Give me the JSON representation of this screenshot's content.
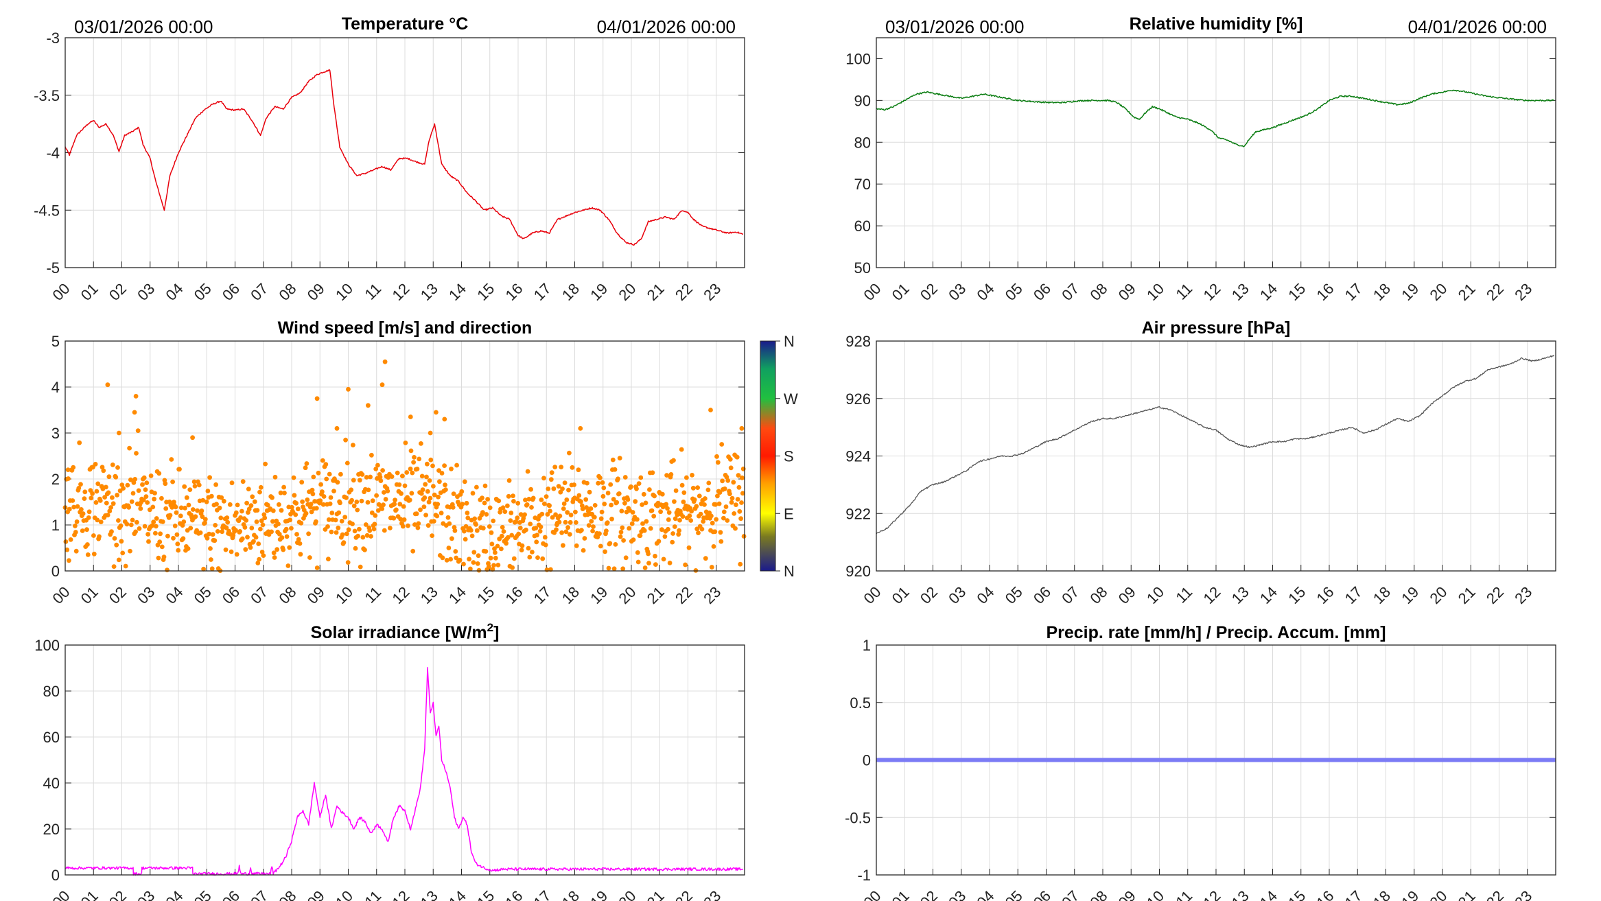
{
  "dates": {
    "start": "03/01/2026 00:00",
    "end": "04/01/2026 00:00"
  },
  "hour_labels": [
    "00",
    "01",
    "02",
    "03",
    "04",
    "05",
    "06",
    "07",
    "08",
    "09",
    "10",
    "11",
    "12",
    "13",
    "14",
    "15",
    "16",
    "17",
    "18",
    "19",
    "20",
    "21",
    "22",
    "23"
  ],
  "colors": {
    "temperature": "#e8000b",
    "humidity": "#0b7d12",
    "wind": "#ff8a00",
    "pressure": "#555555",
    "solar": "#ff00ff",
    "precip": "#7b7bf5"
  },
  "chart_data": [
    {
      "id": "temperature",
      "type": "line",
      "title": "Temperature °C",
      "xlabel": "",
      "ylabel": "",
      "xlim": [
        0,
        24
      ],
      "ylim": [
        -5,
        -3
      ],
      "yticks": [
        -5,
        -4.5,
        -4,
        -3.5,
        -3
      ],
      "ytick_labels": [
        "-5",
        "-4.5",
        "-4",
        "-3.5",
        "-3"
      ],
      "x": [
        0,
        0.15,
        0.4,
        0.6,
        0.8,
        1.0,
        1.2,
        1.45,
        1.7,
        1.9,
        2.1,
        2.35,
        2.6,
        2.75,
        3.0,
        3.2,
        3.5,
        3.7,
        4.0,
        4.3,
        4.6,
        4.9,
        5.2,
        5.5,
        5.7,
        6.0,
        6.3,
        6.6,
        6.9,
        7.1,
        7.4,
        7.7,
        8.0,
        8.3,
        8.6,
        8.9,
        9.1,
        9.35,
        9.5,
        9.7,
        10.0,
        10.3,
        10.6,
        10.9,
        11.2,
        11.5,
        11.8,
        12.1,
        12.4,
        12.7,
        12.85,
        13.05,
        13.3,
        13.6,
        13.9,
        14.2,
        14.5,
        14.8,
        15.1,
        15.4,
        15.7,
        16.0,
        16.2,
        16.5,
        16.8,
        17.1,
        17.4,
        17.7,
        18.0,
        18.3,
        18.6,
        18.9,
        19.2,
        19.5,
        19.8,
        20.1,
        20.35,
        20.6,
        20.9,
        21.2,
        21.5,
        21.8,
        22.0,
        22.2,
        22.5,
        22.8,
        23.1,
        23.4,
        23.7,
        23.95
      ],
      "y": [
        -3.95,
        -4.02,
        -3.85,
        -3.8,
        -3.75,
        -3.72,
        -3.78,
        -3.75,
        -3.85,
        -3.99,
        -3.85,
        -3.82,
        -3.78,
        -3.93,
        -4.05,
        -4.25,
        -4.5,
        -4.2,
        -4.0,
        -3.85,
        -3.7,
        -3.63,
        -3.58,
        -3.55,
        -3.62,
        -3.63,
        -3.62,
        -3.72,
        -3.85,
        -3.7,
        -3.6,
        -3.62,
        -3.52,
        -3.48,
        -3.38,
        -3.32,
        -3.3,
        -3.28,
        -3.6,
        -3.95,
        -4.1,
        -4.2,
        -4.18,
        -4.15,
        -4.12,
        -4.15,
        -4.05,
        -4.05,
        -4.08,
        -4.1,
        -3.9,
        -3.75,
        -4.1,
        -4.2,
        -4.25,
        -4.35,
        -4.42,
        -4.5,
        -4.48,
        -4.55,
        -4.58,
        -4.72,
        -4.75,
        -4.7,
        -4.68,
        -4.7,
        -4.58,
        -4.55,
        -4.52,
        -4.5,
        -4.48,
        -4.5,
        -4.58,
        -4.7,
        -4.78,
        -4.8,
        -4.75,
        -4.6,
        -4.58,
        -4.56,
        -4.58,
        -4.5,
        -4.52,
        -4.58,
        -4.64,
        -4.66,
        -4.68,
        -4.7,
        -4.69,
        -4.71
      ]
    },
    {
      "id": "humidity",
      "type": "line",
      "title": "Relative humidity [%]",
      "xlabel": "",
      "ylabel": "",
      "xlim": [
        0,
        24
      ],
      "ylim": [
        50,
        105
      ],
      "yticks": [
        50,
        60,
        70,
        80,
        90,
        100
      ],
      "ytick_labels": [
        "50",
        "60",
        "70",
        "80",
        "90",
        "100"
      ],
      "x": [
        0,
        0.3,
        0.6,
        1.0,
        1.4,
        1.8,
        2.2,
        2.6,
        3.0,
        3.4,
        3.8,
        4.2,
        4.6,
        5.0,
        5.4,
        5.8,
        6.2,
        6.6,
        7.0,
        7.4,
        7.8,
        8.2,
        8.5,
        8.8,
        9.1,
        9.3,
        9.5,
        9.75,
        10.0,
        10.3,
        10.6,
        11.0,
        11.4,
        11.8,
        12.1,
        12.4,
        12.7,
        13.0,
        13.15,
        13.4,
        13.7,
        14.0,
        14.4,
        14.8,
        15.2,
        15.6,
        16.0,
        16.4,
        16.8,
        17.2,
        17.6,
        18.0,
        18.4,
        18.8,
        19.2,
        19.6,
        20.0,
        20.4,
        20.7,
        21.0,
        21.4,
        21.8,
        22.2,
        22.6,
        23.0,
        23.4,
        23.95
      ],
      "y": [
        88,
        87.8,
        88.5,
        90,
        91.5,
        92,
        91.5,
        91,
        90.5,
        91,
        91.5,
        91,
        90.5,
        90,
        89.8,
        89.6,
        89.5,
        89.5,
        89.8,
        90,
        90,
        90,
        89.5,
        88,
        86,
        85.5,
        87,
        88.5,
        88,
        87,
        86,
        85.5,
        84.5,
        83,
        81,
        80.5,
        79.5,
        79,
        80.5,
        82.5,
        83,
        83.5,
        84.5,
        85.5,
        86.5,
        88,
        90,
        91,
        91,
        90.5,
        90,
        89.5,
        89,
        89.3,
        90.5,
        91.5,
        92,
        92.5,
        92.2,
        91.8,
        91.2,
        90.8,
        90.5,
        90.2,
        90,
        90,
        90
      ]
    },
    {
      "id": "wind",
      "type": "scatter",
      "title": "Wind speed [m/s] and direction",
      "xlabel": "",
      "ylabel": "",
      "xlim": [
        0,
        24
      ],
      "ylim": [
        0,
        5
      ],
      "yticks": [
        0,
        1,
        2,
        3,
        4,
        5
      ],
      "ytick_labels": [
        "0",
        "1",
        "2",
        "3",
        "4",
        "5"
      ],
      "colorbar": {
        "labels": [
          "N",
          "E",
          "S",
          "W",
          "N"
        ],
        "position": "right"
      },
      "hourly_mean": [
        1.45,
        1.5,
        1.4,
        1.25,
        1.1,
        1.0,
        0.95,
        1.15,
        1.2,
        1.4,
        1.55,
        1.5,
        1.5,
        1.45,
        1.0,
        0.75,
        0.9,
        1.15,
        1.35,
        1.3,
        1.25,
        1.2,
        1.2,
        1.5,
        1.6
      ],
      "spread": 0.55,
      "point_count": 1100,
      "outliers": [
        [
          1.5,
          4.05
        ],
        [
          2.5,
          3.8
        ],
        [
          2.45,
          3.45
        ],
        [
          8.9,
          3.75
        ],
        [
          10.0,
          3.95
        ],
        [
          11.2,
          4.05
        ],
        [
          11.3,
          4.55
        ],
        [
          10.7,
          3.6
        ],
        [
          12.2,
          3.35
        ],
        [
          13.1,
          3.45
        ],
        [
          13.4,
          3.3
        ],
        [
          22.8,
          3.5
        ],
        [
          23.9,
          3.1
        ],
        [
          0.1,
          2.2
        ],
        [
          1.9,
          3.0
        ],
        [
          9.6,
          3.1
        ],
        [
          12.9,
          3.0
        ],
        [
          18.2,
          3.1
        ],
        [
          4.5,
          2.9
        ]
      ]
    },
    {
      "id": "pressure",
      "type": "line",
      "title": "Air pressure [hPa]",
      "xlabel": "",
      "ylabel": "",
      "xlim": [
        0,
        24
      ],
      "ylim": [
        920,
        928
      ],
      "yticks": [
        920,
        922,
        924,
        926,
        928
      ],
      "ytick_labels": [
        "920",
        "922",
        "924",
        "926",
        "928"
      ],
      "x": [
        0,
        0.4,
        0.8,
        1.2,
        1.6,
        2.0,
        2.4,
        2.8,
        3.2,
        3.6,
        4.0,
        4.4,
        4.8,
        5.2,
        5.6,
        6.0,
        6.4,
        6.8,
        7.2,
        7.6,
        8.0,
        8.4,
        8.8,
        9.2,
        9.6,
        10.0,
        10.4,
        10.8,
        11.2,
        11.6,
        12.0,
        12.4,
        12.8,
        13.2,
        13.6,
        14.0,
        14.4,
        14.8,
        15.2,
        15.6,
        16.0,
        16.4,
        16.8,
        17.2,
        17.6,
        18.0,
        18.4,
        18.8,
        19.2,
        19.6,
        20.0,
        20.4,
        20.8,
        21.2,
        21.6,
        22.0,
        22.4,
        22.8,
        23.2,
        23.6,
        23.95
      ],
      "y": [
        921.3,
        921.5,
        921.9,
        922.3,
        922.8,
        923.0,
        923.1,
        923.3,
        923.5,
        923.8,
        923.9,
        924.0,
        924.0,
        924.1,
        924.3,
        924.5,
        924.6,
        924.8,
        925.0,
        925.2,
        925.3,
        925.3,
        925.4,
        925.5,
        925.6,
        925.7,
        925.6,
        925.4,
        925.2,
        925.0,
        924.9,
        924.6,
        924.4,
        924.3,
        924.4,
        924.5,
        924.5,
        924.6,
        924.6,
        924.7,
        924.8,
        924.9,
        925.0,
        924.8,
        924.9,
        925.1,
        925.3,
        925.2,
        925.4,
        925.8,
        926.1,
        926.4,
        926.6,
        926.7,
        927.0,
        927.1,
        927.2,
        927.4,
        927.3,
        927.4,
        927.5
      ]
    },
    {
      "id": "solar",
      "type": "line",
      "title": "Solar irradiance [W/m",
      "title_sup": "2",
      "title_end": "]",
      "xlabel": "",
      "ylabel": "",
      "xlim": [
        0,
        24
      ],
      "ylim": [
        0,
        100
      ],
      "yticks": [
        0,
        20,
        40,
        60,
        80,
        100
      ],
      "ytick_labels": [
        "0",
        "20",
        "40",
        "60",
        "80",
        "100"
      ],
      "x": [
        0,
        2.4,
        2.41,
        2.7,
        2.71,
        4.5,
        4.51,
        6.1,
        6.15,
        6.2,
        6.5,
        6.55,
        6.6,
        7.25,
        7.3,
        7.35,
        7.6,
        7.8,
        8.0,
        8.2,
        8.4,
        8.6,
        8.8,
        9.0,
        9.2,
        9.4,
        9.6,
        9.8,
        10.0,
        10.2,
        10.4,
        10.6,
        10.8,
        11.0,
        11.2,
        11.4,
        11.6,
        11.8,
        12.0,
        12.2,
        12.4,
        12.55,
        12.7,
        12.8,
        12.9,
        13.0,
        13.1,
        13.2,
        13.3,
        13.45,
        13.6,
        13.75,
        13.9,
        14.05,
        14.2,
        14.35,
        14.5,
        14.8,
        15.1,
        15.5,
        16.0,
        20.0,
        23.95
      ],
      "y": [
        3,
        3,
        0.5,
        0.5,
        3,
        3,
        0.5,
        0.5,
        4,
        0.5,
        0.5,
        3.5,
        0.5,
        0.5,
        4,
        0.5,
        4,
        8,
        15,
        25,
        28,
        22,
        40,
        25,
        35,
        20,
        30,
        27,
        25,
        20,
        25,
        23,
        18,
        22,
        20,
        14,
        25,
        30,
        28,
        20,
        30,
        38,
        55,
        90,
        70,
        75,
        60,
        65,
        50,
        45,
        38,
        25,
        20,
        25,
        22,
        10,
        5,
        3,
        2,
        2.5,
        2.5,
        2.5,
        2.5
      ]
    },
    {
      "id": "precip",
      "type": "line",
      "title": "Precip. rate [mm/h] / Precip. Accum. [mm]",
      "xlabel": "",
      "ylabel": "",
      "xlim": [
        0,
        24
      ],
      "ylim": [
        -1,
        1
      ],
      "yticks": [
        -1,
        -0.5,
        0,
        0.5,
        1
      ],
      "ytick_labels": [
        "-1",
        "-0.5",
        "0",
        "0.5",
        "1"
      ],
      "x": [
        0,
        24
      ],
      "y": [
        0,
        0
      ]
    }
  ]
}
